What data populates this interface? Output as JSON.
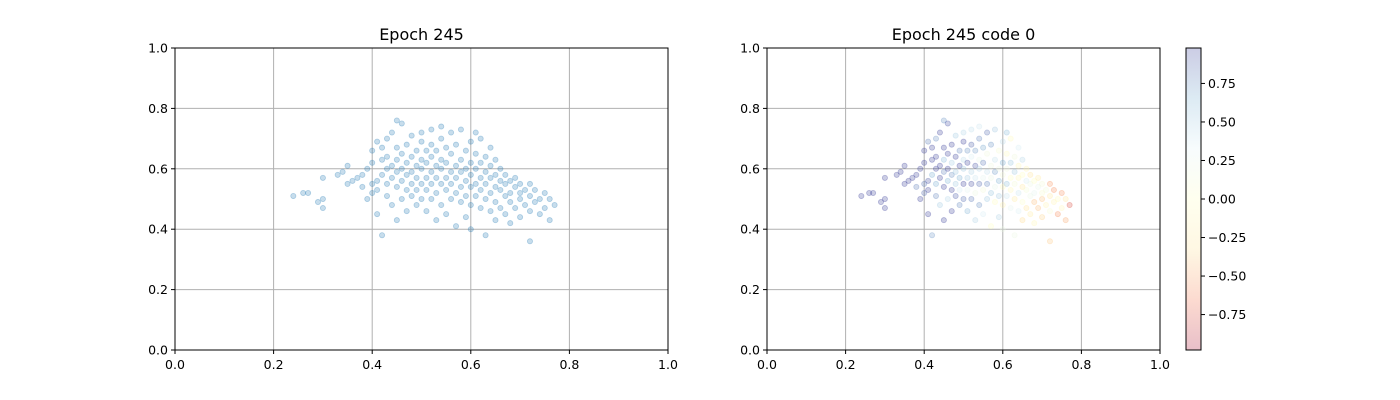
{
  "chart_data": [
    {
      "type": "scatter",
      "title": "Epoch 245",
      "xlabel": "",
      "ylabel": "",
      "xlim": [
        0,
        1
      ],
      "ylim": [
        0,
        1
      ],
      "x_ticks": [
        "0.0",
        "0.2",
        "0.4",
        "0.6",
        "0.8",
        "1.0"
      ],
      "y_ticks": [
        "0.0",
        "0.2",
        "0.4",
        "0.6",
        "0.8",
        "1.0"
      ],
      "grid": true,
      "point_color": "#1f77b4",
      "point_alpha": 0.25,
      "points": [
        [
          0.24,
          0.51
        ],
        [
          0.26,
          0.52
        ],
        [
          0.27,
          0.52
        ],
        [
          0.29,
          0.49
        ],
        [
          0.3,
          0.5
        ],
        [
          0.3,
          0.47
        ],
        [
          0.3,
          0.57
        ],
        [
          0.33,
          0.58
        ],
        [
          0.34,
          0.59
        ],
        [
          0.35,
          0.55
        ],
        [
          0.35,
          0.61
        ],
        [
          0.36,
          0.56
        ],
        [
          0.37,
          0.57
        ],
        [
          0.38,
          0.58
        ],
        [
          0.38,
          0.54
        ],
        [
          0.39,
          0.6
        ],
        [
          0.39,
          0.5
        ],
        [
          0.4,
          0.52
        ],
        [
          0.4,
          0.55
        ],
        [
          0.4,
          0.62
        ],
        [
          0.4,
          0.66
        ],
        [
          0.41,
          0.69
        ],
        [
          0.41,
          0.56
        ],
        [
          0.41,
          0.53
        ],
        [
          0.41,
          0.45
        ],
        [
          0.42,
          0.58
        ],
        [
          0.42,
          0.63
        ],
        [
          0.42,
          0.67
        ],
        [
          0.42,
          0.38
        ],
        [
          0.43,
          0.55
        ],
        [
          0.43,
          0.6
        ],
        [
          0.43,
          0.64
        ],
        [
          0.43,
          0.7
        ],
        [
          0.43,
          0.51
        ],
        [
          0.44,
          0.57
        ],
        [
          0.44,
          0.61
        ],
        [
          0.44,
          0.48
        ],
        [
          0.44,
          0.72
        ],
        [
          0.45,
          0.54
        ],
        [
          0.45,
          0.59
        ],
        [
          0.45,
          0.63
        ],
        [
          0.45,
          0.67
        ],
        [
          0.45,
          0.43
        ],
        [
          0.45,
          0.76
        ],
        [
          0.46,
          0.56
        ],
        [
          0.46,
          0.6
        ],
        [
          0.46,
          0.65
        ],
        [
          0.46,
          0.5
        ],
        [
          0.46,
          0.75
        ],
        [
          0.47,
          0.53
        ],
        [
          0.47,
          0.58
        ],
        [
          0.47,
          0.62
        ],
        [
          0.47,
          0.68
        ],
        [
          0.47,
          0.46
        ],
        [
          0.48,
          0.55
        ],
        [
          0.48,
          0.59
        ],
        [
          0.48,
          0.64
        ],
        [
          0.48,
          0.51
        ],
        [
          0.48,
          0.71
        ],
        [
          0.49,
          0.57
        ],
        [
          0.49,
          0.61
        ],
        [
          0.49,
          0.66
        ],
        [
          0.49,
          0.53
        ],
        [
          0.49,
          0.48
        ],
        [
          0.5,
          0.55
        ],
        [
          0.5,
          0.6
        ],
        [
          0.5,
          0.63
        ],
        [
          0.5,
          0.69
        ],
        [
          0.5,
          0.5
        ],
        [
          0.5,
          0.72
        ],
        [
          0.51,
          0.57
        ],
        [
          0.51,
          0.62
        ],
        [
          0.51,
          0.66
        ],
        [
          0.51,
          0.53
        ],
        [
          0.51,
          0.46
        ],
        [
          0.52,
          0.55
        ],
        [
          0.52,
          0.59
        ],
        [
          0.52,
          0.64
        ],
        [
          0.52,
          0.68
        ],
        [
          0.52,
          0.5
        ],
        [
          0.52,
          0.73
        ],
        [
          0.53,
          0.57
        ],
        [
          0.53,
          0.61
        ],
        [
          0.53,
          0.66
        ],
        [
          0.53,
          0.52
        ],
        [
          0.53,
          0.43
        ],
        [
          0.54,
          0.55
        ],
        [
          0.54,
          0.6
        ],
        [
          0.54,
          0.63
        ],
        [
          0.54,
          0.7
        ],
        [
          0.54,
          0.48
        ],
        [
          0.54,
          0.74
        ],
        [
          0.55,
          0.57
        ],
        [
          0.55,
          0.62
        ],
        [
          0.55,
          0.67
        ],
        [
          0.55,
          0.53
        ],
        [
          0.55,
          0.45
        ],
        [
          0.56,
          0.55
        ],
        [
          0.56,
          0.59
        ],
        [
          0.56,
          0.65
        ],
        [
          0.56,
          0.5
        ],
        [
          0.56,
          0.72
        ],
        [
          0.57,
          0.57
        ],
        [
          0.57,
          0.61
        ],
        [
          0.57,
          0.68
        ],
        [
          0.57,
          0.52
        ],
        [
          0.57,
          0.41
        ],
        [
          0.58,
          0.54
        ],
        [
          0.58,
          0.59
        ],
        [
          0.58,
          0.63
        ],
        [
          0.58,
          0.49
        ],
        [
          0.58,
          0.73
        ],
        [
          0.59,
          0.56
        ],
        [
          0.59,
          0.6
        ],
        [
          0.59,
          0.66
        ],
        [
          0.59,
          0.51
        ],
        [
          0.59,
          0.44
        ],
        [
          0.6,
          0.54
        ],
        [
          0.6,
          0.58
        ],
        [
          0.6,
          0.62
        ],
        [
          0.6,
          0.69
        ],
        [
          0.6,
          0.48
        ],
        [
          0.6,
          0.4
        ],
        [
          0.61,
          0.55
        ],
        [
          0.61,
          0.6
        ],
        [
          0.61,
          0.65
        ],
        [
          0.61,
          0.51
        ],
        [
          0.61,
          0.72
        ],
        [
          0.62,
          0.53
        ],
        [
          0.62,
          0.57
        ],
        [
          0.62,
          0.62
        ],
        [
          0.62,
          0.47
        ],
        [
          0.62,
          0.7
        ],
        [
          0.63,
          0.55
        ],
        [
          0.63,
          0.59
        ],
        [
          0.63,
          0.64
        ],
        [
          0.63,
          0.5
        ],
        [
          0.63,
          0.38
        ],
        [
          0.64,
          0.52
        ],
        [
          0.64,
          0.57
        ],
        [
          0.64,
          0.61
        ],
        [
          0.64,
          0.46
        ],
        [
          0.64,
          0.67
        ],
        [
          0.65,
          0.54
        ],
        [
          0.65,
          0.58
        ],
        [
          0.65,
          0.63
        ],
        [
          0.65,
          0.49
        ],
        [
          0.65,
          0.43
        ],
        [
          0.66,
          0.53
        ],
        [
          0.66,
          0.56
        ],
        [
          0.66,
          0.6
        ],
        [
          0.66,
          0.47
        ],
        [
          0.67,
          0.51
        ],
        [
          0.67,
          0.55
        ],
        [
          0.67,
          0.58
        ],
        [
          0.67,
          0.45
        ],
        [
          0.68,
          0.52
        ],
        [
          0.68,
          0.56
        ],
        [
          0.68,
          0.49
        ],
        [
          0.68,
          0.42
        ],
        [
          0.69,
          0.54
        ],
        [
          0.69,
          0.57
        ],
        [
          0.69,
          0.47
        ],
        [
          0.7,
          0.52
        ],
        [
          0.7,
          0.55
        ],
        [
          0.7,
          0.5
        ],
        [
          0.7,
          0.44
        ],
        [
          0.71,
          0.53
        ],
        [
          0.71,
          0.48
        ],
        [
          0.72,
          0.55
        ],
        [
          0.72,
          0.51
        ],
        [
          0.72,
          0.46
        ],
        [
          0.72,
          0.36
        ],
        [
          0.73,
          0.53
        ],
        [
          0.73,
          0.49
        ],
        [
          0.74,
          0.5
        ],
        [
          0.74,
          0.45
        ],
        [
          0.75,
          0.52
        ],
        [
          0.75,
          0.47
        ],
        [
          0.76,
          0.5
        ],
        [
          0.77,
          0.48
        ],
        [
          0.76,
          0.43
        ]
      ]
    },
    {
      "type": "scatter",
      "title": "Epoch 245 code 0",
      "xlabel": "",
      "ylabel": "",
      "xlim": [
        0,
        1
      ],
      "ylim": [
        0,
        1
      ],
      "x_ticks": [
        "0.0",
        "0.2",
        "0.4",
        "0.6",
        "0.8",
        "1.0"
      ],
      "y_ticks": [
        "0.0",
        "0.2",
        "0.4",
        "0.6",
        "0.8",
        "1.0"
      ],
      "grid": true,
      "point_alpha": 0.25,
      "colormap": "RdYlBu",
      "colorbar": {
        "range": [
          -0.98,
          0.98
        ],
        "ticks": [
          0.75,
          0.5,
          0.25,
          0.0,
          -0.25,
          -0.5,
          -0.75
        ],
        "tick_labels": [
          "0.75",
          "0.50",
          "0.25",
          "0.00",
          "−0.25",
          "−0.50",
          "−0.75"
        ],
        "stops": [
          "#a50026",
          "#f46d43",
          "#fee090",
          "#ffffbf",
          "#e0f3f8",
          "#74add1",
          "#313695"
        ]
      }
    }
  ]
}
